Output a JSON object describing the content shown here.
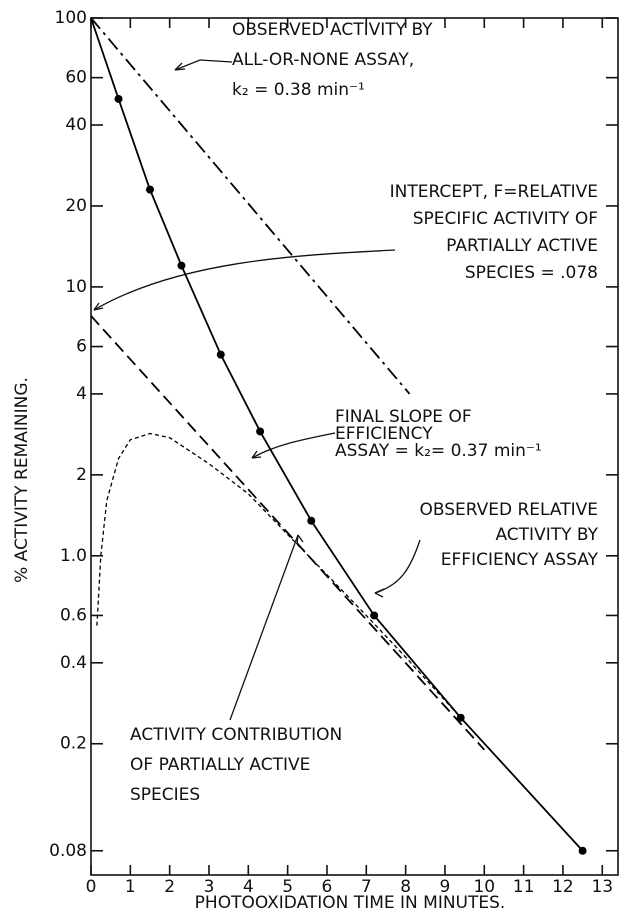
{
  "chart_data": {
    "type": "line",
    "xlabel": "PHOTOOXIDATION TIME IN MINUTES.",
    "ylabel": "% ACTIVITY REMAINING.",
    "xlim": [
      0,
      13.4
    ],
    "xticks": [
      0,
      1,
      2,
      3,
      4,
      5,
      6,
      7,
      8,
      9,
      10,
      11,
      12,
      13
    ],
    "ylim": [
      0.065,
      100
    ],
    "log_y": true,
    "yticks": [
      100,
      60,
      40,
      20,
      10,
      6,
      4,
      2,
      {
        "value": 1,
        "label": "1.0"
      },
      0.6,
      0.4,
      0.2,
      0.08
    ],
    "series": [
      {
        "name": "OBSERVED RELATIVE ACTIVITY BY EFFICIENCY ASSAY",
        "color": "#000",
        "style": "solid",
        "markers": true,
        "x": [
          0,
          0.7,
          1.5,
          2.3,
          3.3,
          4.3,
          5.6,
          7.2,
          9.4,
          12.5
        ],
        "values": [
          100,
          50,
          23,
          12,
          5.6,
          2.9,
          1.35,
          0.6,
          0.25,
          0.08
        ]
      },
      {
        "name": "OBSERVED ACTIVITY BY ALL-OR-NONE ASSAY",
        "color": "#000",
        "style": "dashdot",
        "markers": false,
        "x": [
          0,
          8.1
        ],
        "values": [
          100,
          4
        ]
      },
      {
        "name": "FINAL SLOPE OF EFFICIENCY ASSAY",
        "color": "#000",
        "style": "dashed",
        "markers": false,
        "x": [
          0,
          10
        ],
        "values": [
          7.8,
          0.19
        ]
      },
      {
        "name": "ACTIVITY CONTRIBUTION OF PARTIALLY ACTIVE SPECIES",
        "color": "#000",
        "style": "dotted",
        "markers": false,
        "x": [
          0.15,
          0.25,
          0.4,
          0.7,
          1.0,
          1.5,
          2.0,
          3,
          4,
          5,
          6,
          7,
          8,
          9,
          10
        ],
        "values": [
          0.55,
          1.0,
          1.6,
          2.3,
          2.7,
          2.85,
          2.75,
          2.2,
          1.7,
          1.2,
          0.85,
          0.6,
          0.42,
          0.29,
          0.2
        ]
      }
    ],
    "annotations": [
      {
        "lines": [
          "OBSERVED ACTIVITY BY",
          "ALL-OR-NONE ASSAY,",
          "k₂ = 0.38 min⁻¹"
        ]
      },
      {
        "lines": [
          "INTERCEPT, F=RELATIVE",
          "SPECIFIC ACTIVITY OF",
          "PARTIALLY ACTIVE",
          "SPECIES = .078"
        ]
      },
      {
        "lines": [
          "FINAL SLOPE OF",
          "EFFICIENCY",
          "ASSAY = k₂= 0.37 min⁻¹"
        ]
      },
      {
        "lines": [
          "OBSERVED RELATIVE",
          "ACTIVITY BY",
          "EFFICIENCY ASSAY"
        ]
      },
      {
        "lines": [
          "ACTIVITY CONTRIBUTION",
          "OF PARTIALLY ACTIVE",
          "SPECIES"
        ]
      }
    ]
  }
}
